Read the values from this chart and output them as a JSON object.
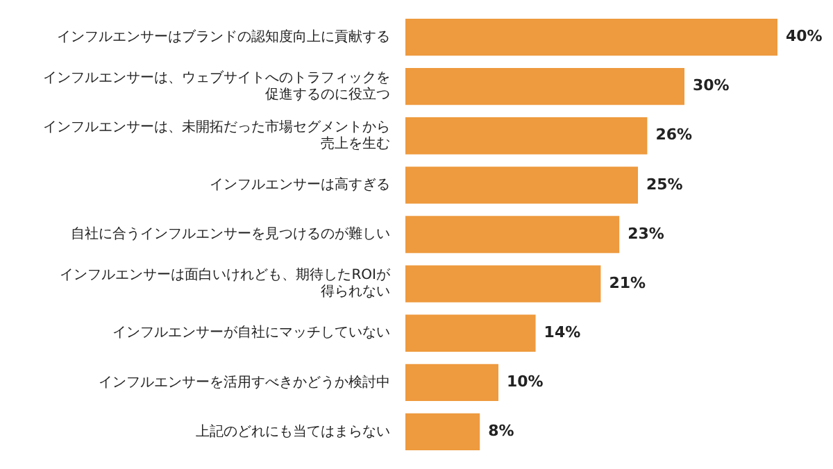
{
  "chart_data": {
    "type": "bar",
    "orientation": "horizontal",
    "categories": [
      "インフルエンサーはブランドの認知度向上に貢献する",
      "インフルエンサーは、ウェブサイトへのトラフィックを促進するのに役立つ",
      "インフルエンサーは、未開拓だった市場セグメントから売上を生む",
      "インフルエンサーは高すぎる",
      "自社に合うインフルエンサーを見つけるのが難しい",
      "インフルエンサーは面白いけれども、期待したROIが得られない",
      "インフルエンサーが自社にマッチしていない",
      "インフルエンサーを活用すべきかどうか検討中",
      "上記のどれにも当てはまらない"
    ],
    "values": [
      40,
      30,
      26,
      25,
      23,
      21,
      14,
      10,
      8
    ],
    "value_labels": [
      "40%",
      "30%",
      "26%",
      "25%",
      "23%",
      "21%",
      "14%",
      "10%",
      "8%"
    ],
    "color": "#ee9a3e",
    "tick_labels": "y"
  }
}
